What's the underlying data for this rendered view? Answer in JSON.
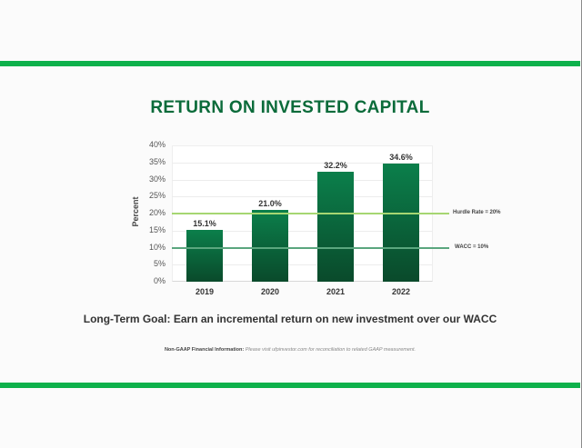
{
  "slide": {
    "title": "RETURN ON INVESTED CAPITAL",
    "goal": "Long-Term Goal: Earn an incremental return on new investment over our WACC",
    "note_label": "Non-GAAP Financial Information:",
    "note_text": " Please visit ufpinvestor.com for reconciliation to related GAAP measurement."
  },
  "colors": {
    "band": "#0db14b",
    "title": "#0b6b3a",
    "bar_top": "#0b7f4b",
    "bar_bottom": "#0a4a2b",
    "hurdle_line": "#a6d672",
    "wacc_line": "#5aa67e"
  },
  "chart_data": {
    "type": "bar",
    "title": "RETURN ON INVESTED CAPITAL",
    "xlabel": "",
    "ylabel": "Percent",
    "categories": [
      "2019",
      "2020",
      "2021",
      "2022"
    ],
    "values": [
      15.1,
      21.0,
      32.2,
      34.6
    ],
    "value_labels": [
      "15.1%",
      "21.0%",
      "32.2%",
      "34.6%"
    ],
    "ylim": [
      0,
      40
    ],
    "yticks": [
      "0%",
      "5%",
      "10%",
      "15%",
      "20%",
      "25%",
      "30%",
      "35%",
      "40%"
    ],
    "grid": true,
    "reference_lines": [
      {
        "name": "Hurdle Rate = 20%",
        "value": 20
      },
      {
        "name": "WACC = 10%",
        "value": 10
      }
    ],
    "legend_position": "right"
  }
}
